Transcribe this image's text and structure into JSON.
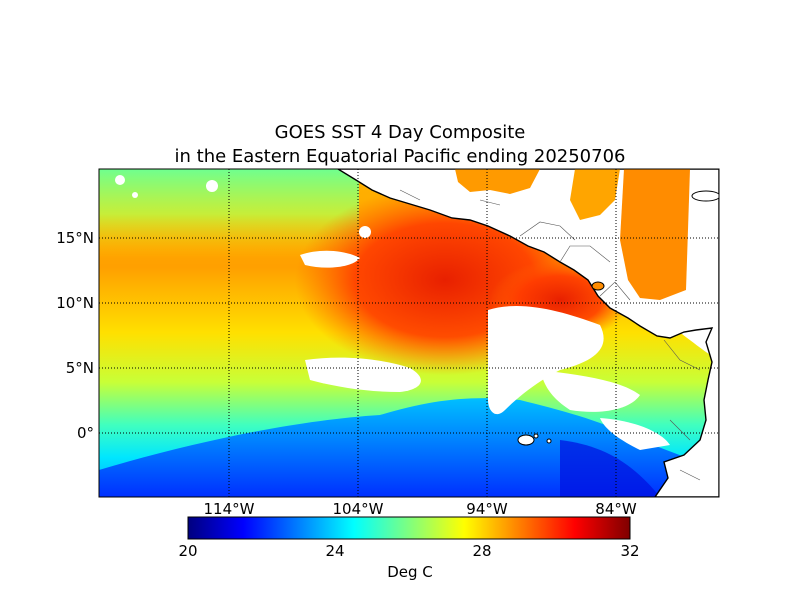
{
  "title_line1": "GOES SST 4 Day Composite",
  "title_line2": "in the Eastern Equatorial Pacific ending 20250706",
  "lat_labels": [
    "15°N",
    "10°N",
    "5°N",
    "0°"
  ],
  "lon_labels": [
    "114°W",
    "104°W",
    "94°W",
    "84°W"
  ],
  "colorbar": {
    "ticks": [
      "20",
      "24",
      "28",
      "32"
    ],
    "label": "Deg C",
    "range": [
      20,
      32
    ],
    "colors": [
      "#00007f",
      "#0000ff",
      "#007fff",
      "#00ffff",
      "#7fff7f",
      "#ffff00",
      "#ff7f00",
      "#ff0000",
      "#7f0000"
    ]
  },
  "land_color": "#ffffff",
  "missing_data_color": "#ffffff"
}
